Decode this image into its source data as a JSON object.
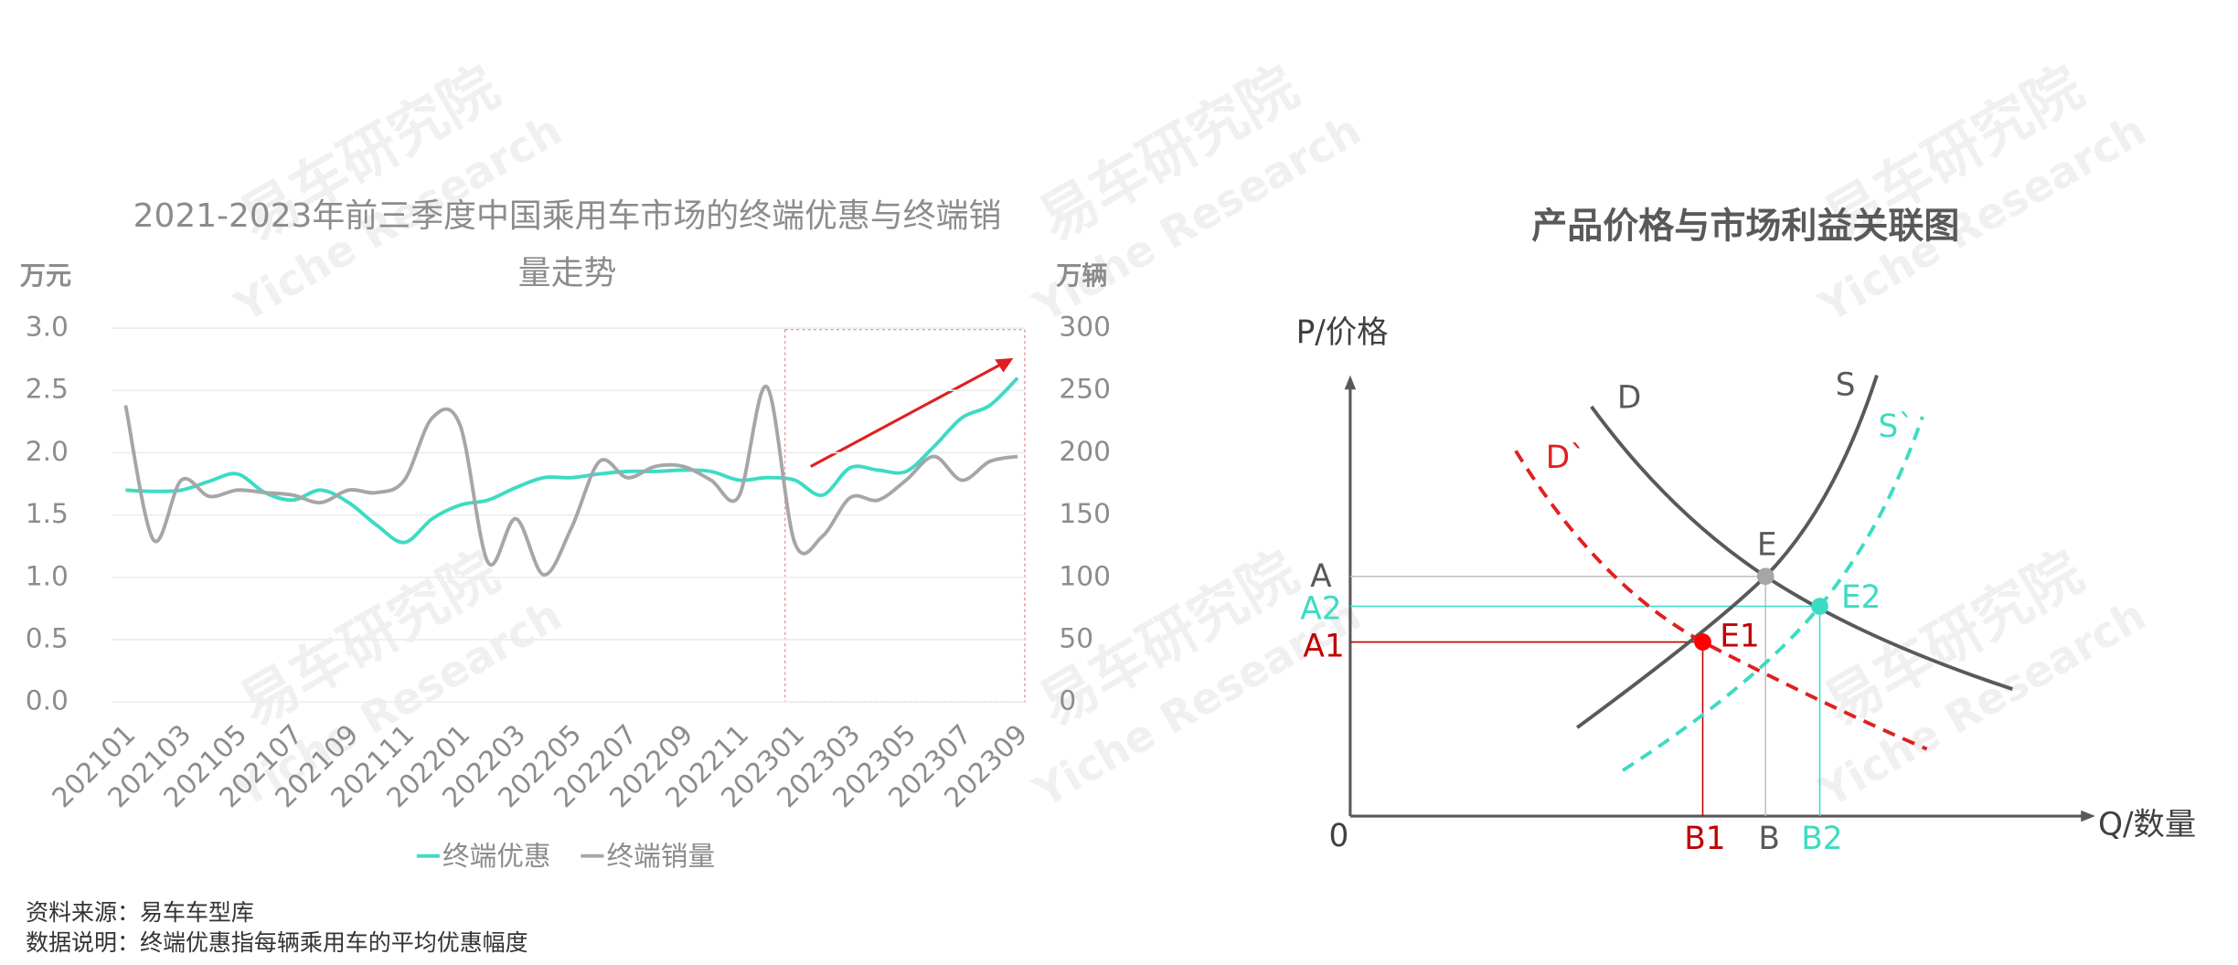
{
  "chart_data": {
    "type": "line",
    "title": "2021-2023年前三季度中国乘用车市场的终端优惠与终端销量走势",
    "ylabel": "万元",
    "y2label": "万辆",
    "categories": [
      "202101",
      null,
      "202103",
      null,
      "202105",
      null,
      "202107",
      null,
      "202109",
      null,
      "202111",
      null,
      "202201",
      null,
      "202203",
      null,
      "202205",
      null,
      "202207",
      null,
      "202209",
      null,
      "202211",
      null,
      "202301",
      null,
      "202303",
      null,
      "202305",
      null,
      "202307",
      null,
      "202309"
    ],
    "ylim": [
      0,
      3
    ],
    "yticks": [
      {
        "value": 0,
        "label": "0.0"
      },
      0.5,
      {
        "value": 1,
        "label": "1.0"
      },
      1.5,
      {
        "value": 2,
        "label": "2.0"
      },
      2.5,
      {
        "value": 3,
        "label": "3.0"
      }
    ],
    "y2lim": [
      0,
      300
    ],
    "y2ticks": [
      0,
      50,
      100,
      150,
      200,
      250,
      300
    ],
    "grid": true,
    "series": [
      {
        "name": "终端优惠",
        "color": "#3ddbc3",
        "values": [
          1.7,
          1.69,
          1.7,
          1.77,
          1.83,
          1.68,
          1.62,
          1.7,
          1.6,
          1.42,
          1.28,
          1.47,
          1.58,
          1.62,
          1.72,
          1.8,
          1.8,
          1.83,
          1.85,
          1.85,
          1.86,
          1.85,
          1.78,
          1.8,
          1.78,
          1.66,
          1.88,
          1.86,
          1.85,
          2.05,
          2.28,
          2.38,
          2.6
        ]
      },
      {
        "name": "终端销量",
        "color": "#a6a6a6",
        "axis": "y2",
        "values": [
          238,
          130,
          178,
          165,
          170,
          168,
          166,
          160,
          170,
          168,
          178,
          228,
          222,
          112,
          147,
          102,
          140,
          193,
          180,
          189,
          189,
          178,
          165,
          253,
          128,
          133,
          164,
          162,
          178,
          197,
          178,
          193,
          197
        ]
      }
    ]
  },
  "source": "资料来源：易车车型库",
  "note": "数据说明：终端优惠指每辆乘用车的平均优惠幅度",
  "watermark": {
    "cn": "易车研究院",
    "en": "Yiche Research"
  },
  "diagram": {
    "title": "产品价格与市场利益关联图",
    "labels": {
      "p_axis": "P/价格",
      "q_axis": "Q/数量",
      "origin": "0",
      "D": "D",
      "S": "S",
      "D2": "D`",
      "S2": "S`",
      "E": "E",
      "E1": "E1",
      "E2": "E2",
      "A": "A",
      "A2": "A2",
      "A1": "A1",
      "B1": "B1",
      "B": "B",
      "B2": "B2"
    }
  }
}
